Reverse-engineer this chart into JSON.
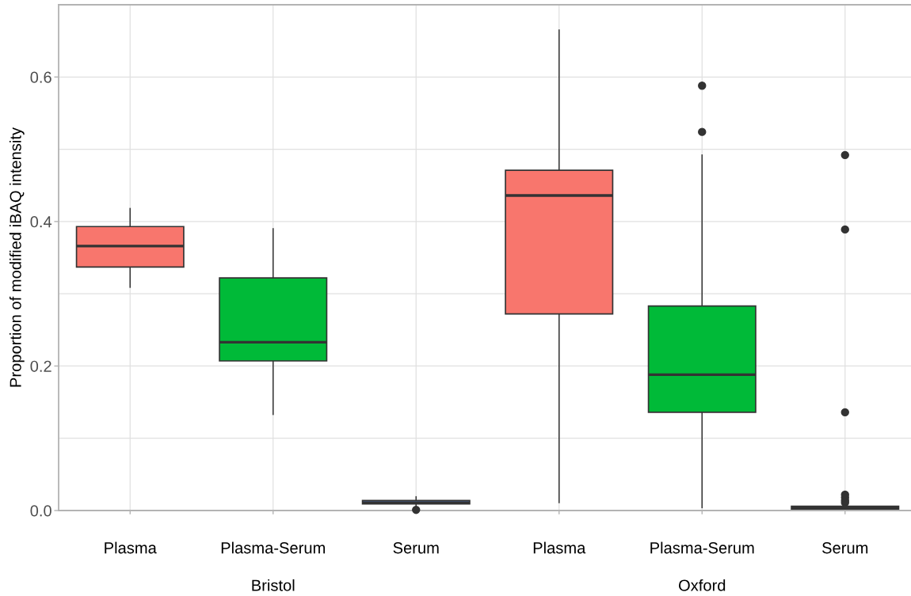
{
  "chart_data": {
    "type": "box",
    "ylabel": "Proportion of modified iBAQ intensity",
    "categories": [
      "Plasma",
      "Plasma-Serum",
      "Serum",
      "Plasma",
      "Plasma-Serum",
      "Serum"
    ],
    "colors": [
      "#f8766d",
      "#00ba38",
      "#619cff",
      "#f8766d",
      "#00ba38",
      "#619cff"
    ],
    "boxes": [
      {
        "low": 0.309,
        "q1": 0.337,
        "median": 0.366,
        "q3": 0.393,
        "high": 0.418
      },
      {
        "low": 0.133,
        "q1": 0.207,
        "median": 0.233,
        "q3": 0.322,
        "high": 0.39
      },
      {
        "low": 0.004,
        "q1": 0.009,
        "median": 0.011,
        "q3": 0.014,
        "high": 0.019,
        "outliers": [
          0.001
        ]
      },
      {
        "low": 0.011,
        "q1": 0.272,
        "median": 0.436,
        "q3": 0.471,
        "high": 0.665
      },
      {
        "low": 0.004,
        "q1": 0.136,
        "median": 0.188,
        "q3": 0.283,
        "high": 0.492,
        "outliers": [
          0.524,
          0.588
        ]
      },
      {
        "low": 0.001,
        "q1": 0.002,
        "median": 0.004,
        "q3": 0.006,
        "high": 0.009,
        "outliers": [
          0.011,
          0.014,
          0.018,
          0.022,
          0.136,
          0.389,
          0.492
        ]
      }
    ],
    "ylim": [
      0,
      0.7
    ],
    "yticks": [
      {
        "value": 0,
        "label": "0.0"
      },
      {
        "value": 0.1,
        "label": null
      },
      {
        "value": 0.2,
        "label": "0.2"
      },
      {
        "value": 0.3,
        "label": null
      },
      {
        "value": 0.4,
        "label": "0.4"
      },
      {
        "value": 0.5,
        "label": null
      },
      {
        "value": 0.6,
        "label": "0.6"
      }
    ],
    "grid": true,
    "annotations": [
      "Bristol",
      "Oxford"
    ]
  }
}
